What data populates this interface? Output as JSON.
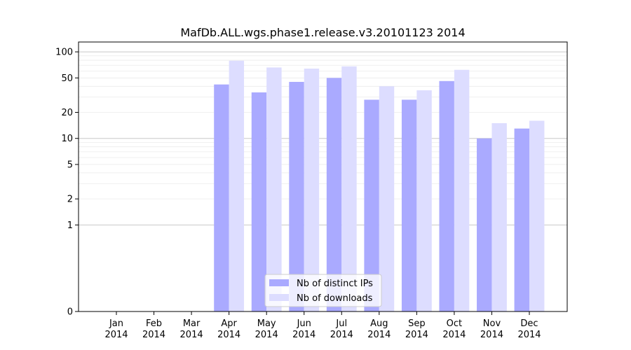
{
  "chart_data": {
    "type": "bar",
    "title": "MafDb.ALL.wgs.phase1.release.v3.20101123 2014",
    "xlabel": "",
    "ylabel": "",
    "yscale": "symlog",
    "ylim": [
      0,
      130
    ],
    "yticks": [
      0,
      1,
      2,
      5,
      10,
      20,
      50,
      100
    ],
    "yticklabels": [
      "0",
      "1",
      "2",
      "5",
      "10",
      "20",
      "50",
      "100"
    ],
    "grid": true,
    "legend_position": "bottom-center",
    "categories": [
      {
        "month": "Jan",
        "year": "2014"
      },
      {
        "month": "Feb",
        "year": "2014"
      },
      {
        "month": "Mar",
        "year": "2014"
      },
      {
        "month": "Apr",
        "year": "2014"
      },
      {
        "month": "May",
        "year": "2014"
      },
      {
        "month": "Jun",
        "year": "2014"
      },
      {
        "month": "Jul",
        "year": "2014"
      },
      {
        "month": "Aug",
        "year": "2014"
      },
      {
        "month": "Sep",
        "year": "2014"
      },
      {
        "month": "Oct",
        "year": "2014"
      },
      {
        "month": "Nov",
        "year": "2014"
      },
      {
        "month": "Dec",
        "year": "2014"
      }
    ],
    "series": [
      {
        "name": "Nb of distinct IPs",
        "color": "#aaaaff",
        "values": [
          0,
          0,
          0,
          42,
          34,
          45,
          50,
          28,
          28,
          46,
          10,
          13
        ]
      },
      {
        "name": "Nb of downloads",
        "color": "#ddddff",
        "values": [
          0,
          0,
          0,
          79,
          66,
          64,
          68,
          40,
          36,
          62,
          15,
          16
        ]
      }
    ]
  }
}
